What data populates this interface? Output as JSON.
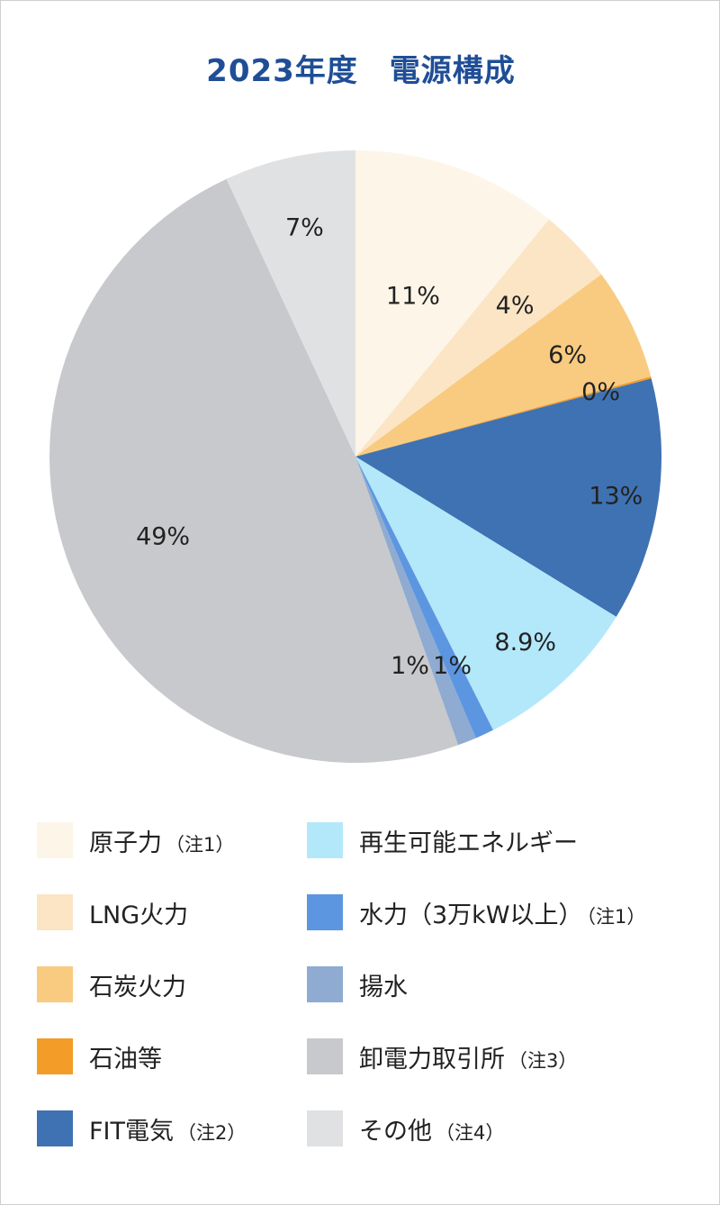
{
  "chart_data": {
    "type": "pie",
    "title": "2023年度　電源構成",
    "start": "12 o'clock, clockwise",
    "slices": [
      {
        "name": "原子力",
        "note": "（注1）",
        "value": 11.0,
        "label": "11%",
        "color": "#fdf5e8",
        "label_color": "#222222"
      },
      {
        "name": "LNG火力",
        "note": "",
        "value": 4.0,
        "label": "4%",
        "color": "#fbe5c5",
        "label_color": "#222222"
      },
      {
        "name": "石炭火力",
        "note": "",
        "value": 6.0,
        "label": "6%",
        "color": "#f8cb80",
        "label_color": "#222222"
      },
      {
        "name": "石油等",
        "note": "",
        "value": 0.1,
        "label": "0%",
        "color": "#f39c27",
        "label_color": "#222222"
      },
      {
        "name": "FIT電気",
        "note": "（注2）",
        "value": 13.0,
        "label": "13%",
        "color": "#3f72b2",
        "label_color": "#ffffff"
      },
      {
        "name": "再生可能エネルギー",
        "note": "",
        "value": 8.9,
        "label": "8.9%",
        "color": "#b3e8fb",
        "label_color": "#222222"
      },
      {
        "name": "水力（3万kW以上）",
        "note": "（注1）",
        "value": 1.0,
        "label": "1%",
        "color": "#5d96e0",
        "label_color": "#222222"
      },
      {
        "name": "揚水",
        "note": "",
        "value": 1.0,
        "label": "1%",
        "color": "#8fabd1",
        "label_color": "#222222"
      },
      {
        "name": "卸電力取引所",
        "note": "（注3）",
        "value": 49.0,
        "label": "49%",
        "color": "#c8c9cc",
        "label_color": "#222222"
      },
      {
        "name": "その他",
        "note": "（注4）",
        "value": 7.0,
        "label": "7%",
        "color": "#e0e1e3",
        "label_color": "#222222"
      }
    ]
  },
  "legend_order": [
    0,
    1,
    2,
    3,
    4,
    5,
    6,
    7,
    8,
    9
  ]
}
